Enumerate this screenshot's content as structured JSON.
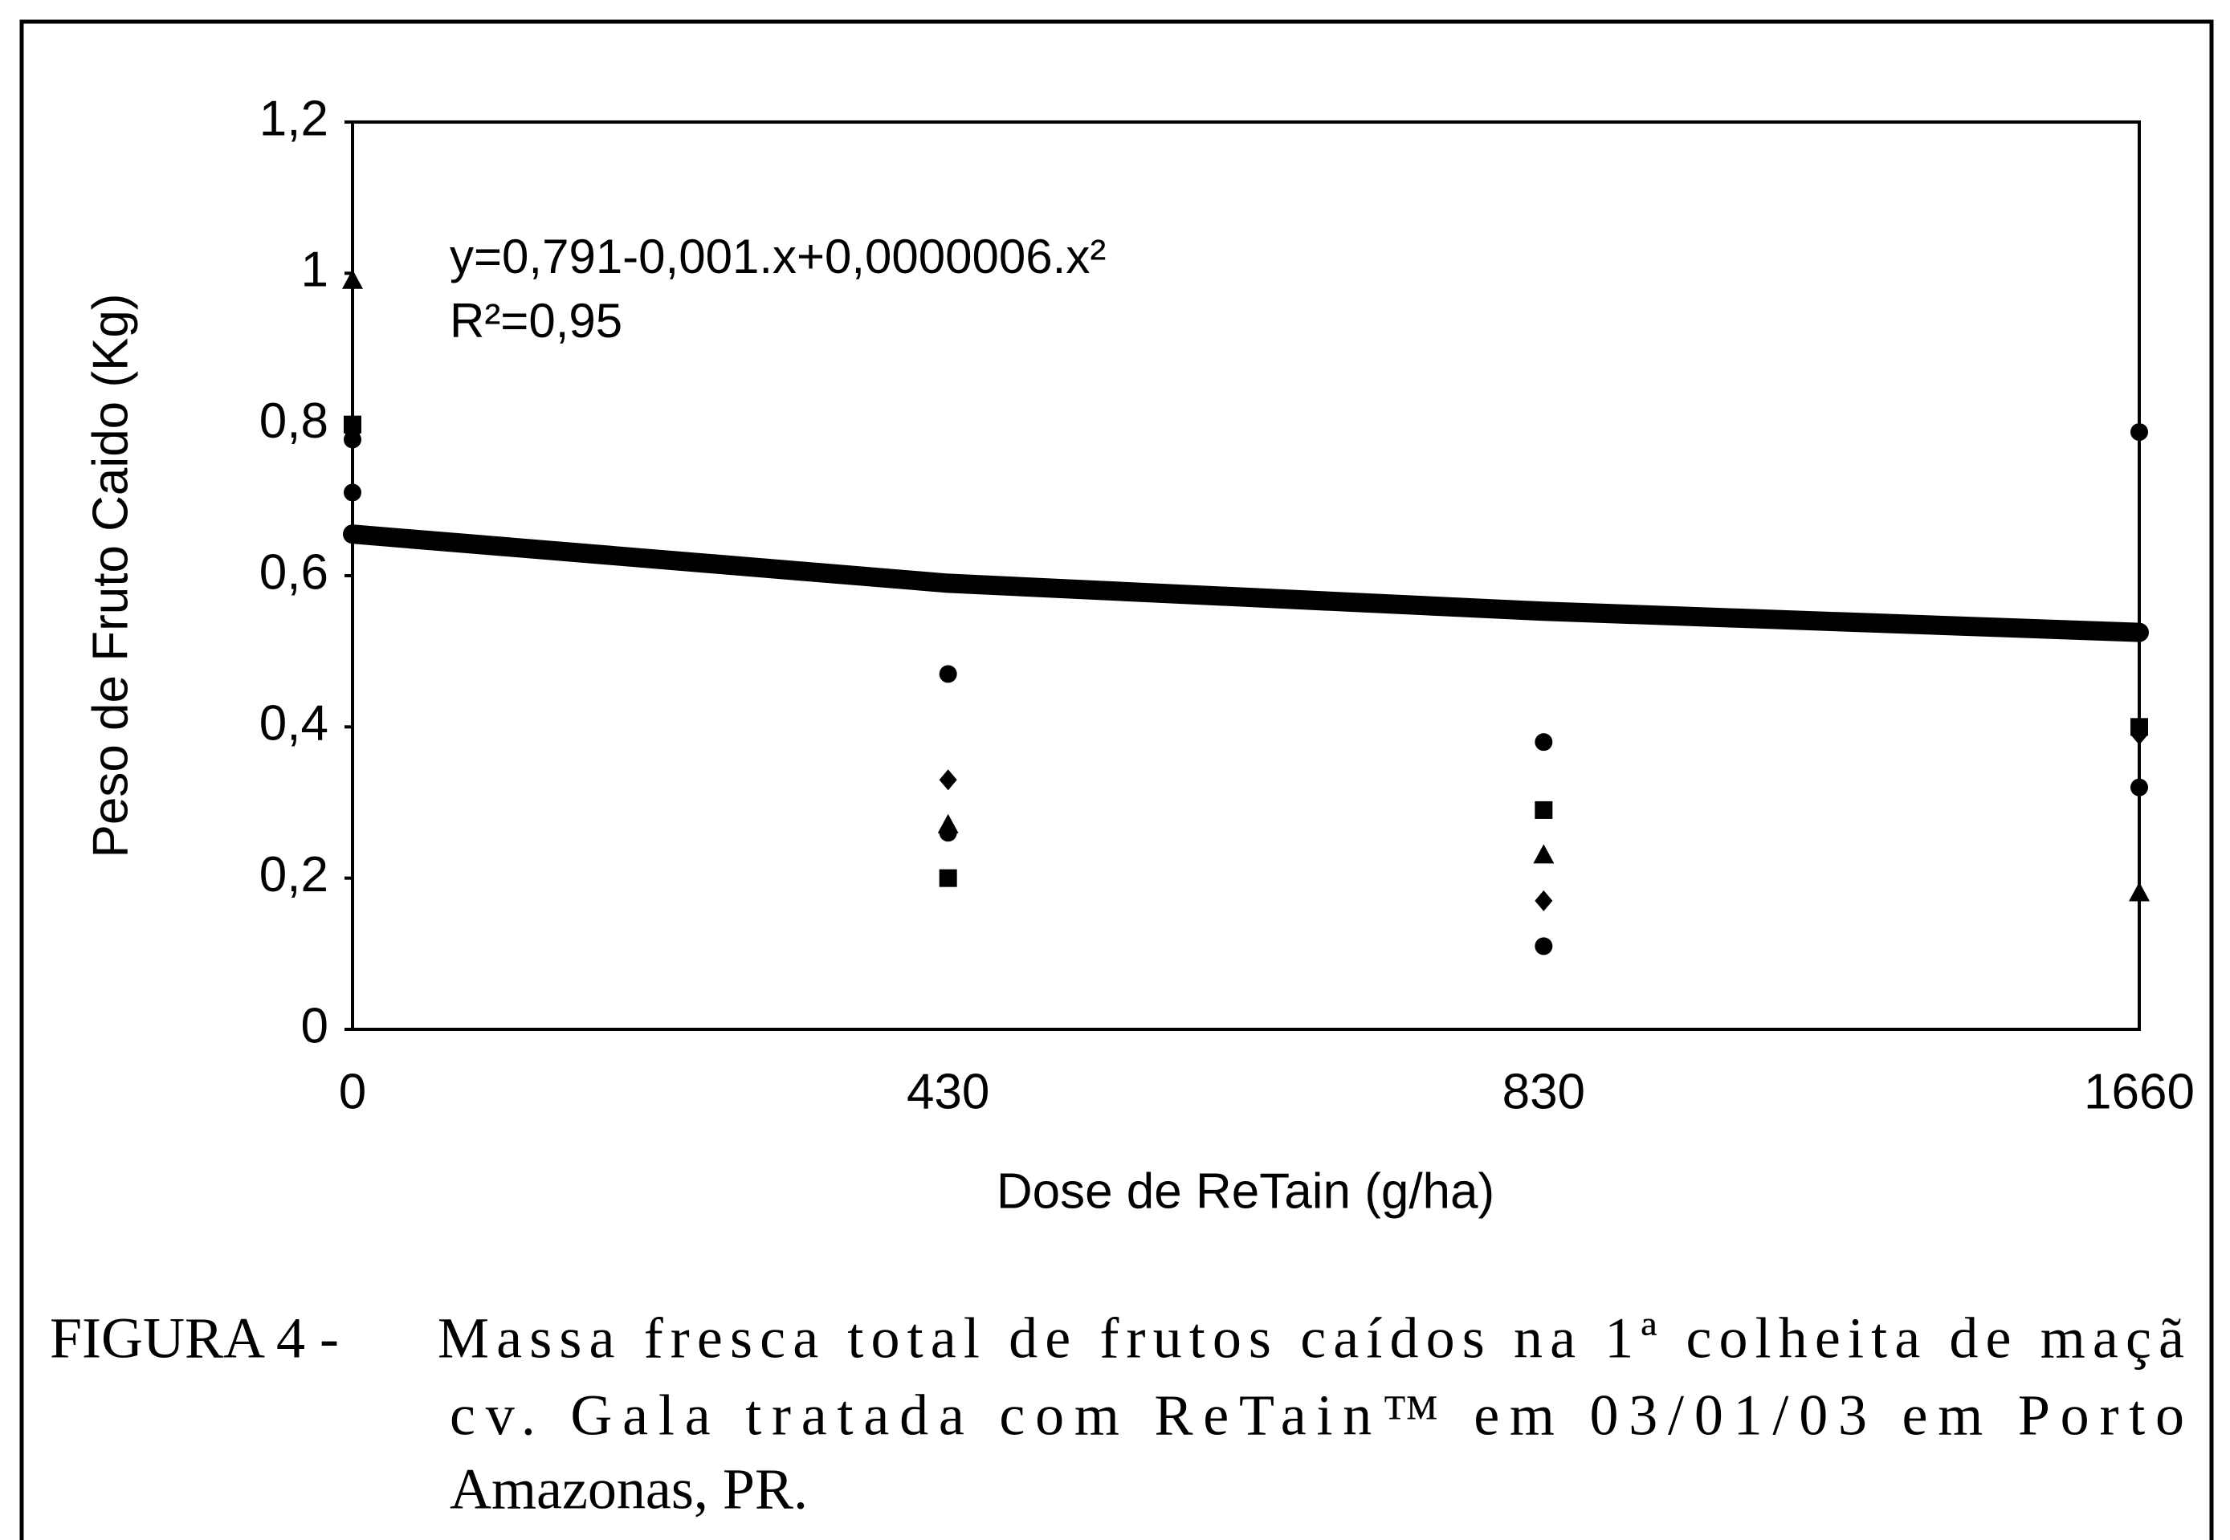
{
  "chart_data": {
    "type": "scatter",
    "x_label": "Dose de ReTain (g/ha)",
    "y_label": "Peso de Fruto Caido (Kg)",
    "annotations": [
      "y=0,791-0,001.x+0,0000006.x²",
      "R²=0,95"
    ],
    "caption": {
      "label": "FIGURA 4 -",
      "lines": [
        "Massa fresca total de frutos caídos na 1ª colheita de maçã",
        "cv. Gala tratada com ReTain™ em 03/01/03 em Porto",
        "Amazonas, PR."
      ]
    },
    "categories": [
      "0",
      "430",
      "830",
      "1660"
    ],
    "ylim": [
      0,
      1.2
    ],
    "yticks": [
      0,
      {
        "value": 0.2,
        "label": "0,2"
      },
      {
        "value": 0.4,
        "label": "0,4"
      },
      {
        "value": 0.6,
        "label": "0,6"
      },
      {
        "value": 0.8,
        "label": "0,8"
      },
      1,
      {
        "value": 1.2,
        "label": "1,2"
      }
    ],
    "series": [
      {
        "marker": "circle",
        "color": "#000000",
        "values": [
          0.78,
          0.47,
          0.38,
          0.79
        ]
      },
      {
        "marker": "circle",
        "color": "#000000",
        "values": [
          0.71,
          0.26,
          0.11,
          0.32
        ]
      },
      {
        "marker": "diamond",
        "color": "#000000",
        "values": [
          0.79,
          0.33,
          0.17,
          0.39
        ]
      },
      {
        "marker": "triangle",
        "color": "#000000",
        "values": [
          0.99,
          0.27,
          0.23,
          0.18
        ]
      },
      {
        "marker": "square",
        "color": "#000000",
        "values": [
          0.8,
          0.2,
          0.29,
          0.4
        ]
      }
    ],
    "trend": {
      "color": "#000000",
      "values": [
        0.655,
        0.59,
        0.553,
        0.525
      ]
    }
  }
}
